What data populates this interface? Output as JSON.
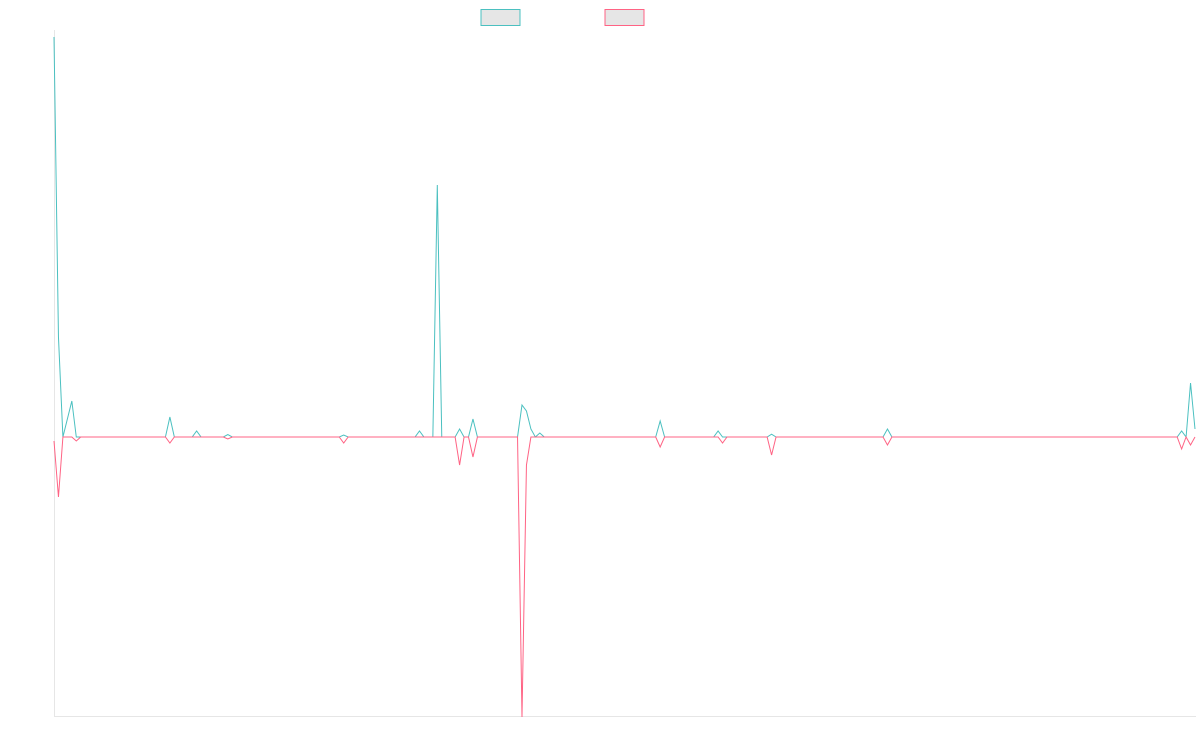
{
  "colors": {
    "series_a": "#4bc0c0",
    "series_b": "#ff6384",
    "axis": "#e6e6e6",
    "legend_fill": "#e6e6e6"
  },
  "chart_data": {
    "type": "line",
    "title": "",
    "xlabel": "",
    "ylabel": "",
    "grid": false,
    "legend_position": "top",
    "x_count": 256,
    "ylim": [
      -100,
      100
    ],
    "series": [
      {
        "color_key": "series_a",
        "points": [
          [
            0,
            100
          ],
          [
            1,
            25
          ],
          [
            2,
            0
          ],
          [
            4,
            9
          ],
          [
            5,
            0
          ],
          [
            25,
            0
          ],
          [
            26,
            5
          ],
          [
            27,
            0
          ],
          [
            31,
            0
          ],
          [
            32,
            1.5
          ],
          [
            33,
            0
          ],
          [
            38,
            0
          ],
          [
            39,
            0.6
          ],
          [
            40,
            0
          ],
          [
            64,
            0
          ],
          [
            65,
            0.5
          ],
          [
            66,
            0
          ],
          [
            81,
            0
          ],
          [
            82,
            1.5
          ],
          [
            83,
            0
          ],
          [
            85,
            0
          ],
          [
            86,
            63
          ],
          [
            87,
            0
          ],
          [
            90,
            0
          ],
          [
            91,
            2
          ],
          [
            92,
            0
          ],
          [
            93,
            0
          ],
          [
            94,
            4.5
          ],
          [
            95,
            0
          ],
          [
            104,
            0
          ],
          [
            105,
            8
          ],
          [
            106,
            6.5
          ],
          [
            107,
            2
          ],
          [
            108,
            0
          ],
          [
            109,
            1
          ],
          [
            110,
            0
          ],
          [
            135,
            0
          ],
          [
            136,
            4
          ],
          [
            137,
            0
          ],
          [
            148,
            0
          ],
          [
            149,
            1.5
          ],
          [
            150,
            0
          ],
          [
            160,
            0
          ],
          [
            161,
            0.7
          ],
          [
            162,
            0
          ],
          [
            186,
            0
          ],
          [
            187,
            2
          ],
          [
            188,
            0
          ],
          [
            252,
            0
          ],
          [
            253,
            1.5
          ],
          [
            254,
            0
          ],
          [
            255,
            13.5
          ],
          [
            256,
            2
          ]
        ]
      },
      {
        "color_key": "series_b",
        "points": [
          [
            0,
            -1
          ],
          [
            1,
            -15
          ],
          [
            2,
            0
          ],
          [
            4,
            0
          ],
          [
            5,
            -1
          ],
          [
            6,
            0
          ],
          [
            25,
            0
          ],
          [
            26,
            -1.5
          ],
          [
            27,
            0
          ],
          [
            38,
            0
          ],
          [
            39,
            -0.5
          ],
          [
            40,
            0
          ],
          [
            64,
            0
          ],
          [
            65,
            -1.5
          ],
          [
            66,
            0
          ],
          [
            90,
            0
          ],
          [
            91,
            -7
          ],
          [
            92,
            0
          ],
          [
            93,
            0
          ],
          [
            94,
            -5
          ],
          [
            95,
            0
          ],
          [
            104,
            0
          ],
          [
            105,
            -70
          ],
          [
            106,
            -7
          ],
          [
            107,
            0
          ],
          [
            135,
            0
          ],
          [
            136,
            -2.5
          ],
          [
            137,
            0
          ],
          [
            149,
            0
          ],
          [
            150,
            -1.5
          ],
          [
            151,
            0
          ],
          [
            160,
            0
          ],
          [
            161,
            -4.5
          ],
          [
            162,
            0
          ],
          [
            186,
            0
          ],
          [
            187,
            -2
          ],
          [
            188,
            0
          ],
          [
            252,
            0
          ],
          [
            253,
            -3
          ],
          [
            254,
            0
          ],
          [
            255,
            -2
          ],
          [
            256,
            0
          ]
        ]
      }
    ]
  }
}
